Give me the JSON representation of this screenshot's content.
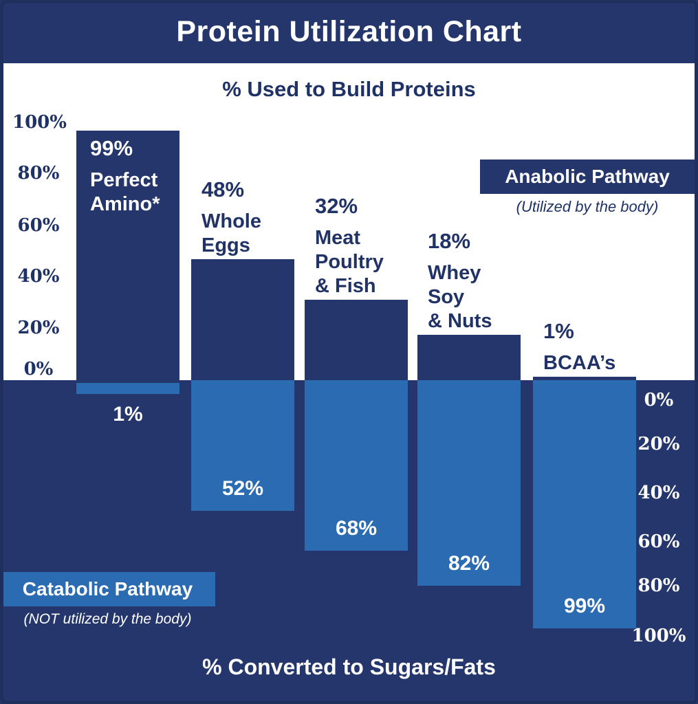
{
  "title": "Protein Utilization Chart",
  "colors": {
    "navy": "#24366b",
    "light_blue": "#2b6bb2",
    "text_navy": "#1f3266",
    "white": "#ffffff"
  },
  "chart_data": {
    "type": "bar",
    "title": "Protein Utilization Chart",
    "categories": [
      "Perfect Amino*",
      "Whole Eggs",
      "Meat Poultry & Fish",
      "Whey Soy & Nuts",
      "BCAA’s"
    ],
    "series": [
      {
        "name": "Anabolic Pathway — % Used to Build Proteins",
        "values": [
          99,
          48,
          32,
          18,
          1
        ]
      },
      {
        "name": "Catabolic Pathway — % Converted to Sugars/Fats",
        "values": [
          1,
          52,
          68,
          82,
          99
        ]
      }
    ],
    "upper": {
      "axis_title": "% Used to Build Proteins",
      "axis_ticks": [
        "100%",
        "80%",
        "60%",
        "40%",
        "20%",
        "0%"
      ],
      "ylim": [
        0,
        100
      ],
      "pathway_label": "Anabolic Pathway",
      "pathway_caption": "(Utilized by the body)",
      "bar_color": "#24366b",
      "background": "#ffffff"
    },
    "lower": {
      "axis_title": "% Converted to Sugars/Fats",
      "axis_ticks": [
        "0%",
        "20%",
        "40%",
        "60%",
        "80%",
        "100%"
      ],
      "ylim": [
        0,
        100
      ],
      "pathway_label": "Catabolic Pathway",
      "pathway_caption": "(NOT utilized by the body)",
      "bar_color": "#2b6bb2",
      "background": "#24366b"
    },
    "layout_hints": {
      "orientation": "diverging-vertical",
      "grid": false,
      "legend_position": "inline-boxes"
    }
  },
  "bars": [
    {
      "anabolic_pct": "99%",
      "label_lines": [
        "Perfect",
        "Amino*"
      ],
      "catabolic_pct": "1%"
    },
    {
      "anabolic_pct": "48%",
      "label_lines": [
        "Whole",
        "Eggs"
      ],
      "catabolic_pct": "52%"
    },
    {
      "anabolic_pct": "32%",
      "label_lines": [
        "Meat",
        "Poultry",
        "& Fish"
      ],
      "catabolic_pct": "68%"
    },
    {
      "anabolic_pct": "18%",
      "label_lines": [
        "Whey",
        "Soy",
        "& Nuts"
      ],
      "catabolic_pct": "82%"
    },
    {
      "anabolic_pct": "1%",
      "label_lines": [
        "BCAA’s"
      ],
      "catabolic_pct": "99%"
    }
  ]
}
